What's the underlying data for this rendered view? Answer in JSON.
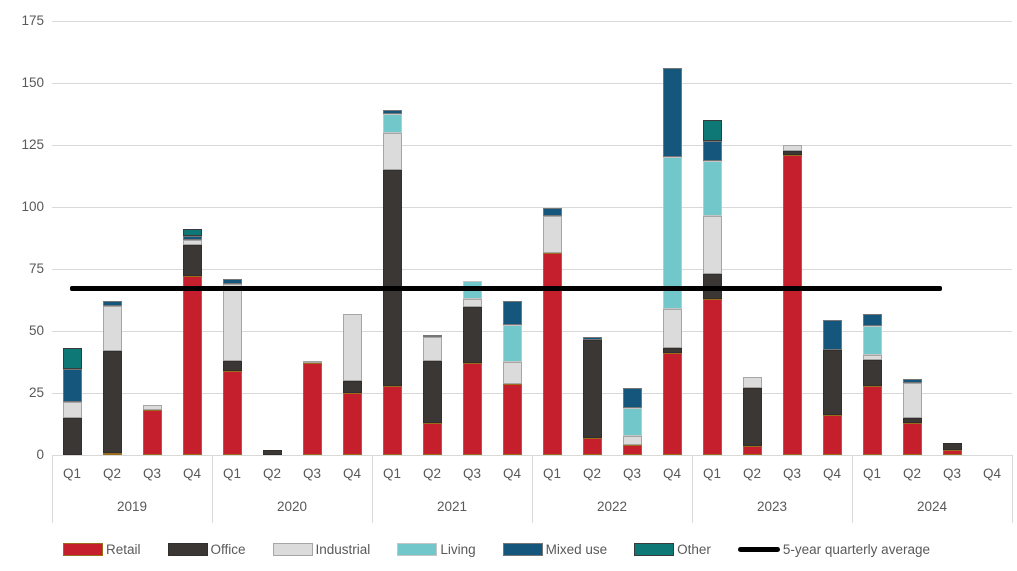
{
  "chart_data": {
    "type": "bar",
    "stacked": true,
    "title": "",
    "xlabel": "",
    "ylabel": "",
    "ylim": [
      0,
      175
    ],
    "y_ticks": [
      0,
      25,
      50,
      75,
      100,
      125,
      150,
      175
    ],
    "grid": true,
    "legend_position": "bottom",
    "years": [
      "2019",
      "2020",
      "2021",
      "2022",
      "2023",
      "2024"
    ],
    "quarters": [
      "Q1",
      "Q2",
      "Q3",
      "Q4"
    ],
    "categories": [
      "2019 Q1",
      "2019 Q2",
      "2019 Q3",
      "2019 Q4",
      "2020 Q1",
      "2020 Q2",
      "2020 Q3",
      "2020 Q4",
      "2021 Q1",
      "2021 Q2",
      "2021 Q3",
      "2021 Q4",
      "2022 Q1",
      "2022 Q2",
      "2022 Q3",
      "2022 Q4",
      "2023 Q1",
      "2023 Q2",
      "2023 Q3",
      "2023 Q4",
      "2024 Q1",
      "2024 Q2",
      "2024 Q3",
      "2024 Q4"
    ],
    "series": [
      {
        "name": "Retail",
        "color": "#c51e2d",
        "border": "#9a6c1e",
        "values": [
          0,
          1,
          18,
          72,
          34,
          0,
          37,
          25,
          28,
          13,
          37,
          28.5,
          81.5,
          7,
          4,
          41,
          63,
          3.5,
          121,
          16,
          28,
          13,
          2,
          0
        ]
      },
      {
        "name": "Office",
        "color": "#3b3735",
        "border": "#322e2c",
        "values": [
          15,
          41,
          0,
          12.5,
          4,
          2,
          0,
          5,
          87,
          25,
          22.5,
          0,
          0,
          39.5,
          0,
          2,
          10,
          23.5,
          1.5,
          26.5,
          10.5,
          2,
          3,
          0
        ]
      },
      {
        "name": "Industrial",
        "color": "#dbdbdb",
        "border": "#a6a6a6",
        "values": [
          6.5,
          18,
          2,
          2,
          31,
          0,
          1,
          27,
          15,
          9.5,
          3.5,
          9,
          15,
          0,
          3.5,
          16,
          23.5,
          4.5,
          2.5,
          0,
          2,
          14,
          0,
          0
        ]
      },
      {
        "name": "Living",
        "color": "#72c7ca",
        "border": "#c6c6c6",
        "values": [
          0,
          0,
          0,
          0,
          0,
          0,
          0,
          0,
          7.5,
          0,
          7,
          15,
          0,
          0,
          11.5,
          61,
          22,
          0,
          0,
          0,
          11.5,
          0,
          0,
          0
        ]
      },
      {
        "name": "Mixed use",
        "color": "#15577c",
        "border": "#767676",
        "values": [
          13,
          2,
          0,
          2,
          2,
          0,
          0,
          0,
          1.5,
          1,
          0,
          9.5,
          3,
          1,
          8,
          36,
          8,
          0,
          0,
          12,
          5,
          1.5,
          0,
          0
        ]
      },
      {
        "name": "Other",
        "color": "#0e7876",
        "border": "#3b3b3b",
        "values": [
          8.5,
          0,
          0,
          2.5,
          0,
          0,
          0,
          0,
          0,
          0,
          0,
          0,
          0,
          0,
          0,
          0,
          8.5,
          0,
          0,
          0,
          0,
          0,
          0,
          0
        ]
      }
    ],
    "average_line": {
      "label": "5-year quarterly average",
      "value": 67.3,
      "color": "#000000"
    }
  },
  "style": {
    "gridline_color": "#d9d9d9",
    "axis_text_color": "#595959",
    "background": "#ffffff"
  }
}
